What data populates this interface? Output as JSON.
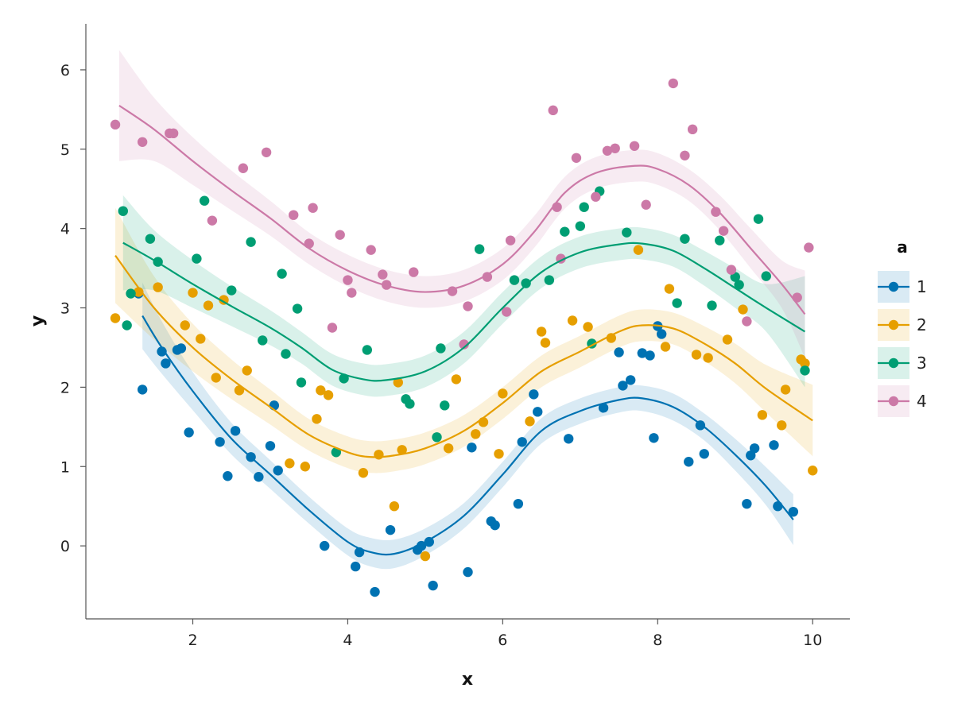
{
  "chart_data": {
    "type": "scatter",
    "title": "",
    "xlabel": "x",
    "ylabel": "y",
    "xlim": [
      0.62,
      10.48
    ],
    "ylim": [
      -0.92,
      6.58
    ],
    "xticks": [
      2,
      4,
      6,
      8,
      10
    ],
    "yticks": [
      0,
      1,
      2,
      3,
      4,
      5,
      6
    ],
    "xtick_labels": [
      "2",
      "4",
      "6",
      "8",
      "10"
    ],
    "ytick_labels": [
      "0",
      "1",
      "2",
      "3",
      "4",
      "5",
      "6"
    ],
    "grid": false,
    "legend": {
      "title": "a",
      "position": "right"
    },
    "series": [
      {
        "name": "1",
        "color": "#0072B2",
        "points": [
          [
            1.3,
            3.18
          ],
          [
            1.35,
            1.97
          ],
          [
            1.6,
            2.45
          ],
          [
            1.65,
            2.3
          ],
          [
            1.8,
            2.47
          ],
          [
            1.85,
            2.49
          ],
          [
            1.95,
            1.43
          ],
          [
            2.35,
            1.31
          ],
          [
            2.45,
            0.88
          ],
          [
            2.55,
            1.45
          ],
          [
            2.75,
            1.12
          ],
          [
            2.85,
            0.87
          ],
          [
            3.0,
            1.26
          ],
          [
            3.05,
            1.77
          ],
          [
            3.1,
            0.95
          ],
          [
            3.7,
            0.0
          ],
          [
            4.1,
            -0.26
          ],
          [
            4.15,
            -0.08
          ],
          [
            4.35,
            -0.58
          ],
          [
            4.55,
            0.2
          ],
          [
            4.9,
            -0.05
          ],
          [
            4.95,
            0.0
          ],
          [
            5.05,
            0.05
          ],
          [
            5.1,
            -0.5
          ],
          [
            5.55,
            -0.33
          ],
          [
            5.6,
            1.24
          ],
          [
            5.85,
            0.31
          ],
          [
            5.9,
            0.26
          ],
          [
            6.2,
            0.53
          ],
          [
            6.25,
            1.31
          ],
          [
            6.4,
            1.91
          ],
          [
            6.45,
            1.69
          ],
          [
            6.85,
            1.35
          ],
          [
            7.3,
            1.74
          ],
          [
            7.5,
            2.44
          ],
          [
            7.55,
            2.02
          ],
          [
            7.65,
            2.09
          ],
          [
            7.8,
            2.43
          ],
          [
            7.9,
            2.4
          ],
          [
            7.95,
            1.36
          ],
          [
            8.0,
            2.77
          ],
          [
            8.05,
            2.67
          ],
          [
            8.4,
            1.06
          ],
          [
            8.55,
            1.52
          ],
          [
            8.6,
            1.16
          ],
          [
            9.15,
            0.53
          ],
          [
            9.2,
            1.14
          ],
          [
            9.25,
            1.23
          ],
          [
            9.5,
            1.27
          ],
          [
            9.55,
            0.5
          ],
          [
            9.75,
            0.43
          ]
        ],
        "fit": [
          [
            1.35,
            2.9
          ],
          [
            1.6,
            2.5
          ],
          [
            2.0,
            1.95
          ],
          [
            2.5,
            1.35
          ],
          [
            3.0,
            0.9
          ],
          [
            3.5,
            0.45
          ],
          [
            4.0,
            0.05
          ],
          [
            4.3,
            -0.08
          ],
          [
            4.6,
            -0.1
          ],
          [
            5.0,
            0.05
          ],
          [
            5.5,
            0.38
          ],
          [
            6.0,
            0.9
          ],
          [
            6.5,
            1.45
          ],
          [
            7.0,
            1.7
          ],
          [
            7.5,
            1.84
          ],
          [
            7.8,
            1.86
          ],
          [
            8.2,
            1.75
          ],
          [
            8.6,
            1.5
          ],
          [
            9.0,
            1.15
          ],
          [
            9.4,
            0.75
          ],
          [
            9.75,
            0.33
          ]
        ],
        "band_halfwidth": [
          0.42,
          0.33,
          0.24,
          0.2,
          0.18,
          0.17,
          0.17,
          0.18,
          0.18,
          0.17,
          0.16,
          0.16,
          0.16,
          0.16,
          0.16,
          0.16,
          0.17,
          0.17,
          0.2,
          0.24,
          0.32
        ]
      },
      {
        "name": "2",
        "color": "#E69F00",
        "points": [
          [
            1.0,
            2.87
          ],
          [
            1.3,
            3.2
          ],
          [
            1.55,
            3.26
          ],
          [
            1.9,
            2.78
          ],
          [
            2.0,
            3.19
          ],
          [
            2.1,
            2.61
          ],
          [
            2.2,
            3.03
          ],
          [
            2.3,
            2.12
          ],
          [
            2.4,
            3.1
          ],
          [
            2.6,
            1.96
          ],
          [
            2.7,
            2.21
          ],
          [
            3.25,
            1.04
          ],
          [
            3.45,
            1.0
          ],
          [
            3.6,
            1.6
          ],
          [
            3.65,
            1.96
          ],
          [
            3.75,
            1.9
          ],
          [
            4.2,
            0.92
          ],
          [
            4.4,
            1.15
          ],
          [
            4.6,
            0.5
          ],
          [
            4.65,
            2.06
          ],
          [
            4.7,
            1.21
          ],
          [
            5.0,
            -0.13
          ],
          [
            5.3,
            1.23
          ],
          [
            5.4,
            2.1
          ],
          [
            5.65,
            1.41
          ],
          [
            5.75,
            1.56
          ],
          [
            5.95,
            1.16
          ],
          [
            6.0,
            1.92
          ],
          [
            6.35,
            1.57
          ],
          [
            6.5,
            2.7
          ],
          [
            6.55,
            2.56
          ],
          [
            6.9,
            2.84
          ],
          [
            7.1,
            2.76
          ],
          [
            7.4,
            2.62
          ],
          [
            7.75,
            3.73
          ],
          [
            8.1,
            2.51
          ],
          [
            8.15,
            3.24
          ],
          [
            8.5,
            2.41
          ],
          [
            8.65,
            2.37
          ],
          [
            8.9,
            2.6
          ],
          [
            9.1,
            2.98
          ],
          [
            9.35,
            1.65
          ],
          [
            9.6,
            1.52
          ],
          [
            9.65,
            1.97
          ],
          [
            9.85,
            2.35
          ],
          [
            9.9,
            2.3
          ],
          [
            10.0,
            0.95
          ]
        ],
        "fit": [
          [
            1.0,
            3.66
          ],
          [
            1.5,
            3.0
          ],
          [
            2.0,
            2.5
          ],
          [
            2.5,
            2.1
          ],
          [
            3.0,
            1.75
          ],
          [
            3.5,
            1.4
          ],
          [
            4.0,
            1.18
          ],
          [
            4.3,
            1.12
          ],
          [
            4.6,
            1.14
          ],
          [
            5.0,
            1.23
          ],
          [
            5.5,
            1.45
          ],
          [
            6.0,
            1.8
          ],
          [
            6.5,
            2.2
          ],
          [
            7.0,
            2.45
          ],
          [
            7.5,
            2.7
          ],
          [
            7.8,
            2.78
          ],
          [
            8.2,
            2.74
          ],
          [
            8.6,
            2.55
          ],
          [
            9.0,
            2.3
          ],
          [
            9.4,
            1.98
          ],
          [
            10.0,
            1.58
          ]
        ],
        "band_halfwidth": [
          0.6,
          0.4,
          0.3,
          0.25,
          0.22,
          0.2,
          0.2,
          0.2,
          0.2,
          0.2,
          0.2,
          0.2,
          0.2,
          0.2,
          0.2,
          0.2,
          0.2,
          0.22,
          0.25,
          0.3,
          0.45
        ]
      },
      {
        "name": "3",
        "color": "#009E73",
        "points": [
          [
            1.1,
            4.22
          ],
          [
            1.15,
            2.78
          ],
          [
            1.2,
            3.18
          ],
          [
            1.45,
            3.87
          ],
          [
            1.55,
            3.58
          ],
          [
            2.05,
            3.62
          ],
          [
            2.15,
            4.35
          ],
          [
            2.5,
            3.22
          ],
          [
            2.75,
            3.83
          ],
          [
            2.9,
            2.59
          ],
          [
            3.15,
            3.43
          ],
          [
            3.2,
            2.42
          ],
          [
            3.35,
            2.99
          ],
          [
            3.4,
            2.06
          ],
          [
            3.85,
            1.18
          ],
          [
            3.95,
            2.11
          ],
          [
            4.25,
            2.47
          ],
          [
            4.75,
            1.85
          ],
          [
            4.8,
            1.79
          ],
          [
            5.15,
            1.37
          ],
          [
            5.2,
            2.49
          ],
          [
            5.25,
            1.77
          ],
          [
            5.7,
            3.74
          ],
          [
            6.15,
            3.35
          ],
          [
            6.3,
            3.31
          ],
          [
            6.6,
            3.35
          ],
          [
            6.8,
            3.96
          ],
          [
            7.0,
            4.03
          ],
          [
            7.05,
            4.27
          ],
          [
            7.15,
            2.55
          ],
          [
            7.25,
            4.47
          ],
          [
            7.6,
            3.95
          ],
          [
            8.25,
            3.06
          ],
          [
            8.35,
            3.87
          ],
          [
            8.7,
            3.03
          ],
          [
            8.8,
            3.85
          ],
          [
            9.0,
            3.39
          ],
          [
            9.05,
            3.29
          ],
          [
            9.3,
            4.12
          ],
          [
            9.4,
            3.4
          ],
          [
            9.9,
            2.21
          ]
        ],
        "fit": [
          [
            1.1,
            3.82
          ],
          [
            1.5,
            3.6
          ],
          [
            2.0,
            3.3
          ],
          [
            2.5,
            3.02
          ],
          [
            3.0,
            2.75
          ],
          [
            3.4,
            2.5
          ],
          [
            3.8,
            2.22
          ],
          [
            4.2,
            2.1
          ],
          [
            4.5,
            2.09
          ],
          [
            5.0,
            2.2
          ],
          [
            5.5,
            2.5
          ],
          [
            6.0,
            3.0
          ],
          [
            6.5,
            3.45
          ],
          [
            7.0,
            3.7
          ],
          [
            7.5,
            3.8
          ],
          [
            7.8,
            3.81
          ],
          [
            8.2,
            3.72
          ],
          [
            8.6,
            3.5
          ],
          [
            9.0,
            3.25
          ],
          [
            9.4,
            3.0
          ],
          [
            9.9,
            2.7
          ]
        ],
        "band_halfwidth": [
          0.6,
          0.38,
          0.3,
          0.25,
          0.22,
          0.2,
          0.2,
          0.2,
          0.2,
          0.2,
          0.2,
          0.2,
          0.2,
          0.2,
          0.2,
          0.2,
          0.2,
          0.22,
          0.25,
          0.3,
          0.7
        ]
      },
      {
        "name": "4",
        "color": "#CC79A7",
        "points": [
          [
            1.0,
            5.31
          ],
          [
            1.35,
            5.09
          ],
          [
            1.7,
            5.2
          ],
          [
            1.75,
            5.2
          ],
          [
            2.25,
            4.1
          ],
          [
            2.65,
            4.76
          ],
          [
            2.95,
            4.96
          ],
          [
            3.3,
            4.17
          ],
          [
            3.5,
            3.81
          ],
          [
            3.55,
            4.26
          ],
          [
            3.8,
            2.75
          ],
          [
            3.9,
            3.92
          ],
          [
            4.0,
            3.35
          ],
          [
            4.05,
            3.19
          ],
          [
            4.3,
            3.73
          ],
          [
            4.45,
            3.42
          ],
          [
            4.5,
            3.29
          ],
          [
            4.85,
            3.45
          ],
          [
            5.35,
            3.21
          ],
          [
            5.5,
            2.54
          ],
          [
            5.55,
            3.02
          ],
          [
            5.8,
            3.39
          ],
          [
            6.05,
            2.95
          ],
          [
            6.1,
            3.85
          ],
          [
            6.65,
            5.49
          ],
          [
            6.7,
            4.27
          ],
          [
            6.75,
            3.62
          ],
          [
            6.95,
            4.89
          ],
          [
            7.2,
            4.4
          ],
          [
            7.35,
            4.98
          ],
          [
            7.45,
            5.01
          ],
          [
            7.7,
            5.04
          ],
          [
            7.85,
            4.3
          ],
          [
            8.2,
            5.83
          ],
          [
            8.35,
            4.92
          ],
          [
            8.45,
            5.25
          ],
          [
            8.75,
            4.21
          ],
          [
            8.85,
            3.97
          ],
          [
            8.95,
            3.48
          ],
          [
            9.15,
            2.83
          ],
          [
            9.8,
            3.13
          ],
          [
            9.95,
            3.76
          ]
        ],
        "fit": [
          [
            1.05,
            5.55
          ],
          [
            1.5,
            5.25
          ],
          [
            2.0,
            4.85
          ],
          [
            2.5,
            4.48
          ],
          [
            3.0,
            4.13
          ],
          [
            3.5,
            3.75
          ],
          [
            4.0,
            3.47
          ],
          [
            4.5,
            3.28
          ],
          [
            5.0,
            3.2
          ],
          [
            5.5,
            3.28
          ],
          [
            6.0,
            3.55
          ],
          [
            6.4,
            3.95
          ],
          [
            6.8,
            4.45
          ],
          [
            7.2,
            4.7
          ],
          [
            7.7,
            4.79
          ],
          [
            8.0,
            4.75
          ],
          [
            8.4,
            4.55
          ],
          [
            8.8,
            4.2
          ],
          [
            9.2,
            3.75
          ],
          [
            9.6,
            3.3
          ],
          [
            9.9,
            2.92
          ]
        ],
        "band_halfwidth": [
          0.7,
          0.4,
          0.3,
          0.25,
          0.22,
          0.2,
          0.2,
          0.2,
          0.2,
          0.2,
          0.2,
          0.2,
          0.2,
          0.2,
          0.2,
          0.2,
          0.2,
          0.22,
          0.25,
          0.3,
          0.55
        ]
      }
    ]
  }
}
